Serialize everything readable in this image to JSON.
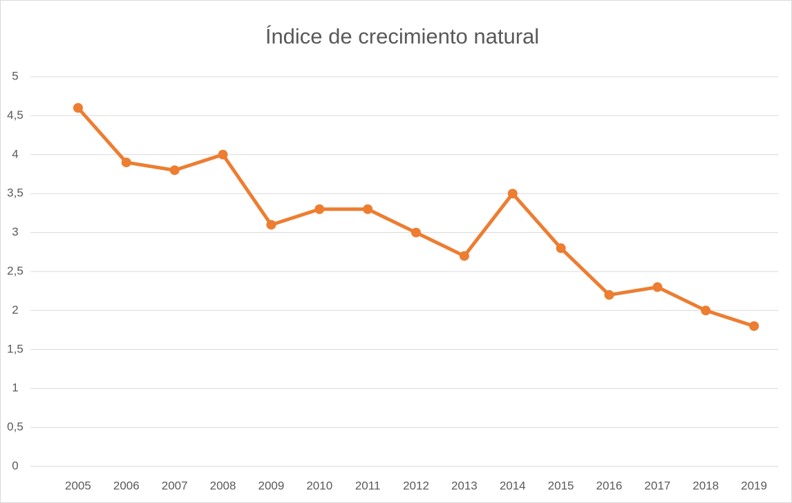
{
  "chart_data": {
    "type": "line",
    "title": "Índice de crecimiento natural",
    "categories": [
      "2005",
      "2006",
      "2007",
      "2008",
      "2009",
      "2010",
      "2011",
      "2012",
      "2013",
      "2014",
      "2015",
      "2016",
      "2017",
      "2018",
      "2019"
    ],
    "series": [
      {
        "name": "Índice de crecimiento natural",
        "color": "#ed7d31",
        "values": [
          4.6,
          3.9,
          3.8,
          4.0,
          3.1,
          3.3,
          3.3,
          3.0,
          2.7,
          3.5,
          2.8,
          2.2,
          2.3,
          2.0,
          1.8
        ]
      }
    ],
    "ylim": [
      0,
      5
    ],
    "yticks": [
      0,
      {
        "value": 0.5,
        "label": "0,5"
      },
      1,
      {
        "value": 1.5,
        "label": "1,5"
      },
      2,
      {
        "value": 2.5,
        "label": "2,5"
      },
      3,
      {
        "value": 3.5,
        "label": "3,5"
      },
      4,
      {
        "value": 4.5,
        "label": "4,5"
      },
      5
    ],
    "grid": true
  }
}
